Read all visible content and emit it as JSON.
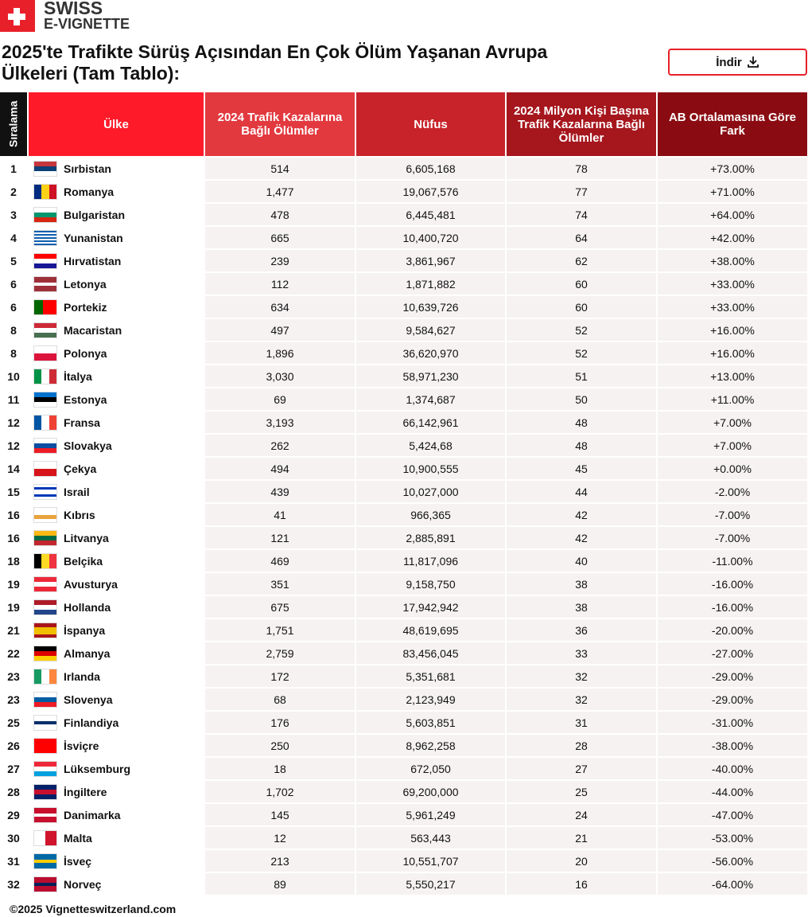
{
  "header": {
    "logo_top": "SWISS",
    "logo_bottom": "E-VIGNETTE",
    "title": "2025'te Trafikte Sürüş Açısından En Çok Ölüm Yaşanan Avrupa Ülkeleri (Tam Tablo):",
    "button": "İndir"
  },
  "table": {
    "headers": [
      "Sıralama",
      "Ülke",
      "2024 Trafik Kazalarına Bağlı Ölümler",
      "Nüfus",
      "2024 Milyon Kişi Başına Trafik Kazalarına Bağlı Ölümler",
      "AB Ortalamasına Göre Fark"
    ],
    "rows": [
      [
        "1",
        "Sırbistan",
        "514",
        "6,605,168",
        "78",
        "+73.00%"
      ],
      [
        "2",
        "Romanya",
        "1,477",
        "19,067,576",
        "77",
        "+71.00%"
      ],
      [
        "3",
        "Bulgaristan",
        "478",
        "6,445,481",
        "74",
        "+64.00%"
      ],
      [
        "4",
        "Yunanistan",
        "665",
        "10,400,720",
        "64",
        "+42.00%"
      ],
      [
        "5",
        "Hırvatistan",
        "239",
        "3,861,967",
        "62",
        "+38.00%"
      ],
      [
        "6",
        "Letonya",
        "112",
        "1,871,882",
        "60",
        "+33.00%"
      ],
      [
        "6",
        "Portekiz",
        "634",
        "10,639,726",
        "60",
        "+33.00%"
      ],
      [
        "8",
        "Macaristan",
        "497",
        "9,584,627",
        "52",
        "+16.00%"
      ],
      [
        "8",
        "Polonya",
        "1,896",
        "36,620,970",
        "52",
        "+16.00%"
      ],
      [
        "10",
        "İtalya",
        "3,030",
        "58,971,230",
        "51",
        "+13.00%"
      ],
      [
        "11",
        "Estonya",
        "69",
        "1,374,687",
        "50",
        "+11.00%"
      ],
      [
        "12",
        "Fransa",
        "3,193",
        "66,142,961",
        "48",
        "+7.00%"
      ],
      [
        "12",
        "Slovakya",
        "262",
        "5,424,68",
        "48",
        "+7.00%"
      ],
      [
        "14",
        "Çekya",
        "494",
        "10,900,555",
        "45",
        "+0.00%"
      ],
      [
        "15",
        "Israil",
        "439",
        "10,027,000",
        "44",
        "-2.00%"
      ],
      [
        "16",
        "Kıbrıs",
        "41",
        "966,365",
        "42",
        "-7.00%"
      ],
      [
        "16",
        "Litvanya",
        "121",
        "2,885,891",
        "42",
        "-7.00%"
      ],
      [
        "18",
        "Belçika",
        "469",
        "11,817,096",
        "40",
        "-11.00%"
      ],
      [
        "19",
        "Avusturya",
        "351",
        "9,158,750",
        "38",
        "-16.00%"
      ],
      [
        "19",
        "Hollanda",
        "675",
        "17,942,942",
        "38",
        "-16.00%"
      ],
      [
        "21",
        "İspanya",
        "1,751",
        "48,619,695",
        "36",
        "-20.00%"
      ],
      [
        "22",
        "Almanya",
        "2,759",
        "83,456,045",
        "33",
        "-27.00%"
      ],
      [
        "23",
        "Irlanda",
        "172",
        "5,351,681",
        "32",
        "-29.00%"
      ],
      [
        "23",
        "Slovenya",
        "68",
        "2,123,949",
        "32",
        "-29.00%"
      ],
      [
        "25",
        "Finlandiya",
        "176",
        "5,603,851",
        "31",
        "-31.00%"
      ],
      [
        "26",
        "İsviçre",
        "250",
        "8,962,258",
        "28",
        "-38.00%"
      ],
      [
        "27",
        "Lüksemburg",
        "18",
        "672,050",
        "27",
        "-40.00%"
      ],
      [
        "28",
        "İngiltere",
        "1,702",
        "69,200,000",
        "25",
        "-44.00%"
      ],
      [
        "29",
        "Danimarka",
        "145",
        "5,961,249",
        "24",
        "-47.00%"
      ],
      [
        "30",
        "Malta",
        "12",
        "563,443",
        "21",
        "-53.00%"
      ],
      [
        "31",
        "İsveç",
        "213",
        "10,551,707",
        "20",
        "-56.00%"
      ],
      [
        "32",
        "Norveç",
        "89",
        "5,550,217",
        "16",
        "-64.00%"
      ]
    ]
  },
  "footer": "©2025 Vignetteswitzerland.com"
}
